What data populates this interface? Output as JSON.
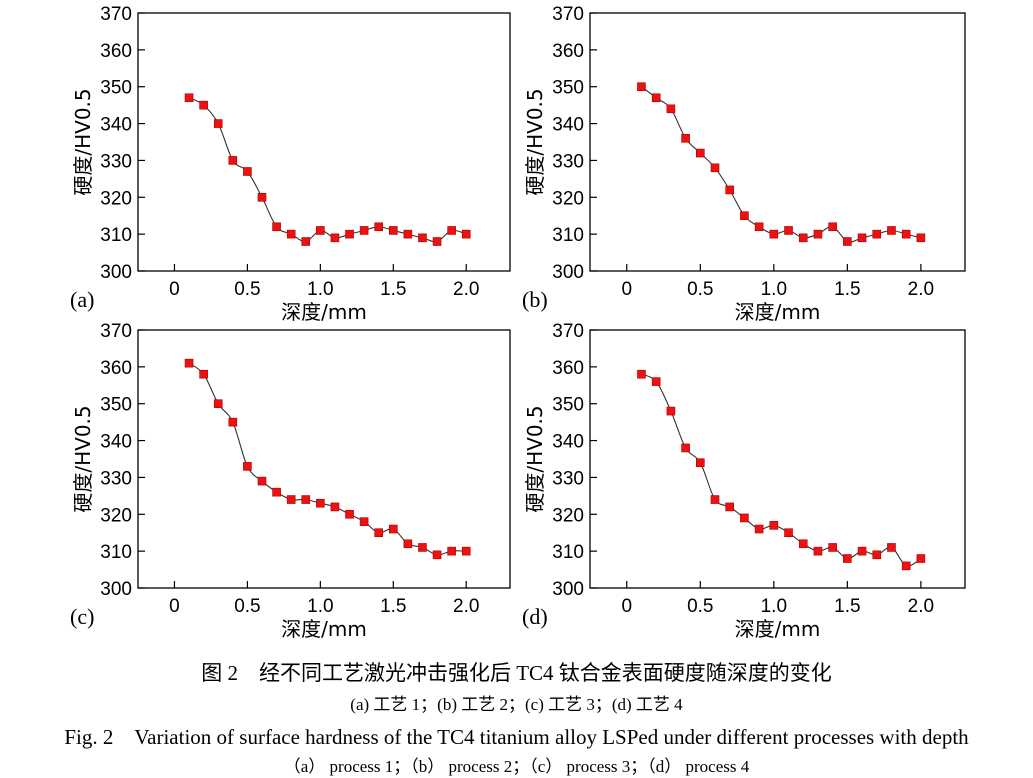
{
  "chart_data": [
    {
      "type": "line",
      "panel_label": "(a)",
      "xlabel": "深度/mm",
      "ylabel": "硬度/HV0.5",
      "xlim": [
        -0.25,
        2.3
      ],
      "ylim": [
        300,
        370
      ],
      "xticks": [
        "0",
        "0.5",
        "1.0",
        "1.5",
        "2.0"
      ],
      "yticks": [
        "300",
        "310",
        "320",
        "330",
        "340",
        "350",
        "360",
        "370"
      ],
      "marker_color": "#ee1111",
      "line_color": "#333333",
      "x": [
        0.1,
        0.2,
        0.3,
        0.4,
        0.5,
        0.6,
        0.7,
        0.8,
        0.9,
        1.0,
        1.1,
        1.2,
        1.3,
        1.4,
        1.5,
        1.6,
        1.7,
        1.8,
        1.9,
        2.0
      ],
      "y": [
        347,
        345,
        340,
        330,
        327,
        320,
        312,
        310,
        308,
        311,
        309,
        310,
        311,
        312,
        311,
        310,
        309,
        308,
        311,
        310
      ]
    },
    {
      "type": "line",
      "panel_label": "(b)",
      "xlabel": "深度/mm",
      "ylabel": "硬度/HV0.5",
      "xlim": [
        -0.25,
        2.3
      ],
      "ylim": [
        300,
        370
      ],
      "xticks": [
        "0",
        "0.5",
        "1.0",
        "1.5",
        "2.0"
      ],
      "yticks": [
        "300",
        "310",
        "320",
        "330",
        "340",
        "350",
        "360",
        "370"
      ],
      "marker_color": "#ee1111",
      "line_color": "#333333",
      "x": [
        0.1,
        0.2,
        0.3,
        0.4,
        0.5,
        0.6,
        0.7,
        0.8,
        0.9,
        1.0,
        1.1,
        1.2,
        1.3,
        1.4,
        1.5,
        1.6,
        1.7,
        1.8,
        1.9,
        2.0
      ],
      "y": [
        350,
        347,
        344,
        336,
        332,
        328,
        322,
        315,
        312,
        310,
        311,
        309,
        310,
        312,
        308,
        309,
        310,
        311,
        310,
        309
      ]
    },
    {
      "type": "line",
      "panel_label": "(c)",
      "xlabel": "深度/mm",
      "ylabel": "硬度/HV0.5",
      "xlim": [
        -0.25,
        2.3
      ],
      "ylim": [
        300,
        370
      ],
      "xticks": [
        "0",
        "0.5",
        "1.0",
        "1.5",
        "2.0"
      ],
      "yticks": [
        "300",
        "310",
        "320",
        "330",
        "340",
        "350",
        "360",
        "370"
      ],
      "marker_color": "#ee1111",
      "line_color": "#333333",
      "x": [
        0.1,
        0.2,
        0.3,
        0.4,
        0.5,
        0.6,
        0.7,
        0.8,
        0.9,
        1.0,
        1.1,
        1.2,
        1.3,
        1.4,
        1.5,
        1.6,
        1.7,
        1.8,
        1.9,
        2.0
      ],
      "y": [
        361,
        358,
        350,
        345,
        333,
        329,
        326,
        324,
        324,
        323,
        322,
        320,
        318,
        315,
        316,
        312,
        311,
        309,
        310,
        310
      ]
    },
    {
      "type": "line",
      "panel_label": "(d)",
      "xlabel": "深度/mm",
      "ylabel": "硬度/HV0.5",
      "xlim": [
        -0.25,
        2.3
      ],
      "ylim": [
        300,
        370
      ],
      "xticks": [
        "0",
        "0.5",
        "1.0",
        "1.5",
        "2.0"
      ],
      "yticks": [
        "300",
        "310",
        "320",
        "330",
        "340",
        "350",
        "360",
        "370"
      ],
      "marker_color": "#ee1111",
      "line_color": "#333333",
      "x": [
        0.1,
        0.2,
        0.3,
        0.4,
        0.5,
        0.6,
        0.7,
        0.8,
        0.9,
        1.0,
        1.1,
        1.2,
        1.3,
        1.4,
        1.5,
        1.6,
        1.7,
        1.8,
        1.9,
        2.0
      ],
      "y": [
        358,
        356,
        348,
        338,
        334,
        324,
        322,
        319,
        316,
        317,
        315,
        312,
        310,
        311,
        308,
        310,
        309,
        311,
        306,
        308
      ]
    }
  ],
  "caption": {
    "cn": "图 2　经不同工艺激光冲击强化后 TC4 钛合金表面硬度随深度的变化",
    "cn_sub": "(a) 工艺 1；(b) 工艺 2；(c) 工艺 3；(d) 工艺 4",
    "en": "Fig. 2　Variation of surface hardness of the TC4 titanium alloy LSPed under different processes with depth",
    "en_sub": "（a） process 1；（b） process 2；（c） process 3；（d） process 4"
  }
}
